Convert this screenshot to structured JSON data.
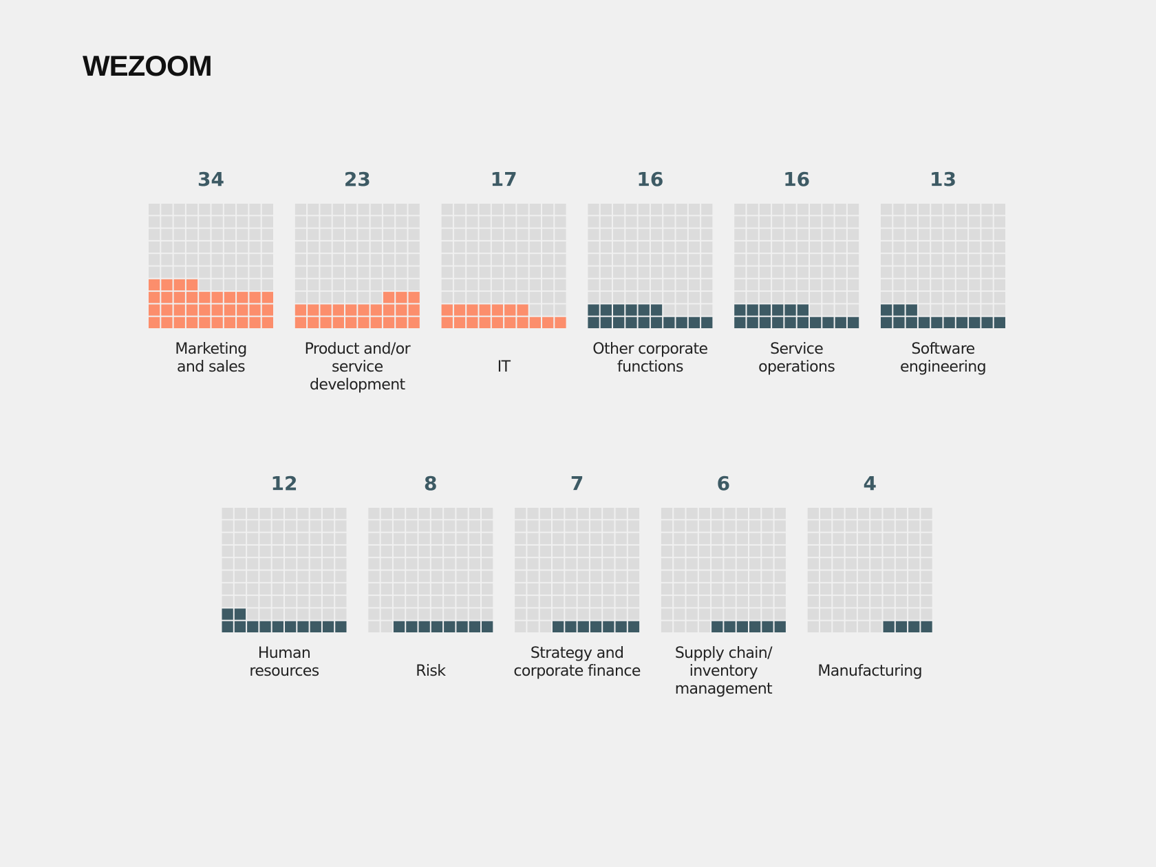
{
  "logo": "WEZOOM",
  "chart_data": {
    "type": "waffle",
    "categories": [
      "Marketing\nand sales",
      "Product and/or\nservice development",
      "IT",
      "Other corporate\nfunctions",
      "Service\noperations",
      "Software\nengineering",
      "Human\nresources",
      "Risk",
      "Strategy and\ncorporate finance",
      "Supply chain/\ninventory\nmanagement",
      "Manufacturing"
    ],
    "values": [
      34,
      23,
      17,
      16,
      16,
      13,
      12,
      8,
      7,
      6,
      4
    ],
    "colors": [
      "#fc8e6c",
      "#fc8e6c",
      "#fc8e6c",
      "#3d5a64",
      "#3d5a64",
      "#3d5a64",
      "#3d5a64",
      "#3d5a64",
      "#3d5a64",
      "#3d5a64",
      "#3d5a64"
    ]
  }
}
